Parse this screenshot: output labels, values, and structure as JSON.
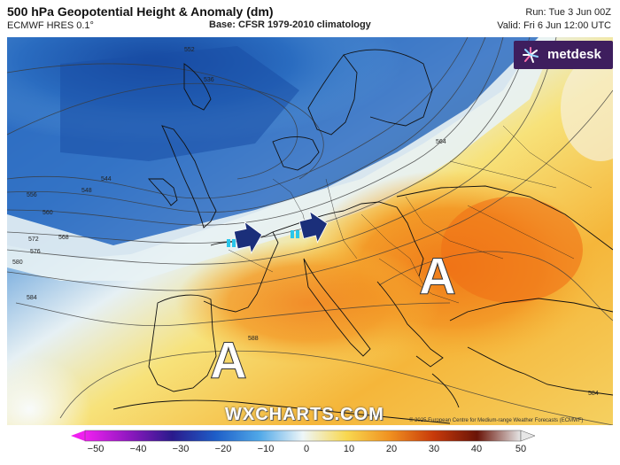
{
  "header": {
    "title": "500 hPa Geopotential Height & Anomaly (dm)",
    "model": "ECMWF HRES 0.1°",
    "base": "Base: CFSR 1979-2010 climatology",
    "run": "Run: Tue 3 Jun 00Z",
    "valid": "Valid: Fri 6 Jun 12:00 UTC"
  },
  "logo": {
    "text": "metdesk",
    "icon": "star-burst-icon"
  },
  "map": {
    "contour_labels": [
      "552",
      "536",
      "544",
      "548",
      "556",
      "560",
      "568",
      "572",
      "576",
      "580",
      "584",
      "564",
      "588",
      "584"
    ],
    "high_markers": [
      "A",
      "A"
    ],
    "arrows": [
      "arrow-east",
      "arrow-east"
    ]
  },
  "watermark": "WXCHARTS.COM",
  "credit": "© 2025 European Centre for Medium-range Weather Forecasts (ECMWF)",
  "colorbar": {
    "ticks": [
      "−50",
      "−40",
      "−30",
      "−20",
      "−10",
      "0",
      "10",
      "20",
      "30",
      "40",
      "50"
    ],
    "colors": [
      "#e020e0",
      "#7a18b8",
      "#2a1a8c",
      "#1e5ec8",
      "#50a8e8",
      "#e8f4f8",
      "#f8d850",
      "#f09020",
      "#c83a0a",
      "#6a1408",
      "#f0f0f0"
    ]
  }
}
